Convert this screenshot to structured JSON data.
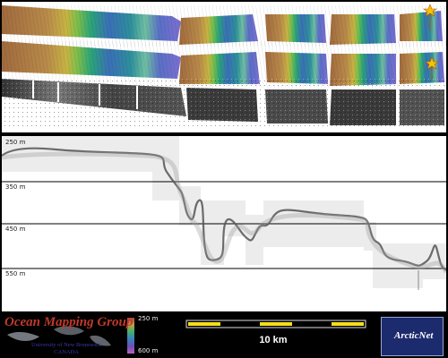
{
  "profile": {
    "depth_labels": [
      "250 m",
      "350 m",
      "450 m",
      "550 m"
    ]
  },
  "legend": {
    "top_label": "250 m",
    "bottom_label": "600 m"
  },
  "scale_bar": {
    "label": "10 km"
  },
  "logos": {
    "ocean_mapping": {
      "title": "Ocean Mapping Group",
      "line1": "University of New Brunswick",
      "line2": "CANADA"
    },
    "arcticnet": {
      "word": "ArcticNet"
    }
  },
  "colors": {
    "frame": "#000000",
    "scale_yellow": "#f5e01a",
    "og_red": "#c0392b",
    "arcticnet_blue": "#1c2a6e"
  },
  "icons": [
    "star-icon",
    "maple-leaf-icon"
  ]
}
